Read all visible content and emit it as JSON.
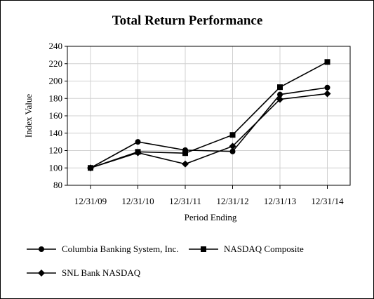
{
  "chart_data": {
    "type": "line",
    "title": "Total Return Performance",
    "xlabel": "Period Ending",
    "ylabel": "Index Value",
    "categories": [
      "12/31/09",
      "12/31/10",
      "12/31/11",
      "12/31/12",
      "12/31/13",
      "12/31/14"
    ],
    "ylim": [
      80,
      240
    ],
    "yticks": [
      80,
      100,
      120,
      140,
      160,
      180,
      200,
      220,
      240
    ],
    "grid": true,
    "legend_position": "bottom",
    "series": [
      {
        "name": "Columbia Banking System, Inc.",
        "marker": "circle",
        "values": [
          100,
          130,
          120.5,
          119,
          184.5,
          192.5
        ]
      },
      {
        "name": "NASDAQ Composite",
        "marker": "square",
        "values": [
          100,
          118.5,
          117,
          138,
          193,
          222
        ]
      },
      {
        "name": "SNL Bank NASDAQ",
        "marker": "diamond",
        "values": [
          100,
          117.5,
          104.5,
          125,
          179,
          185.5
        ]
      }
    ]
  },
  "colors": {
    "line": "#000000",
    "grid": "#d0d0d0",
    "background": "#ffffff"
  }
}
